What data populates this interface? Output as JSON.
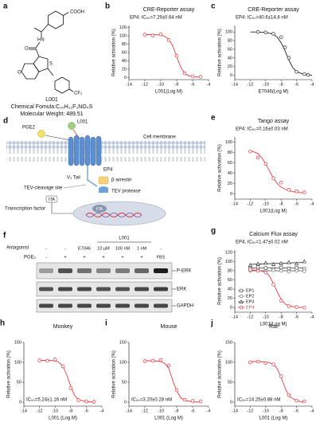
{
  "panel_a": {
    "label": "a",
    "atoms": [
      "COOH",
      "HN",
      "O",
      "S",
      "O",
      "CF₃"
    ],
    "name": "L001",
    "formula": "Chemical Fomula:C₂₅H₂₂F₃NO₄S",
    "weight": "Molecular Weight: 489.51"
  },
  "panel_d": {
    "label": "d",
    "pge2": "PGE2",
    "ligand": "L001",
    "membrane": "Cell membrane",
    "receptor": "EP4",
    "tail": "V₂ Tail",
    "cleavage": "TEV-cleavage site",
    "arrestin": "β-arrestin",
    "protease": "TEV protease",
    "tta": "tTA",
    "factor": "Transcription factor",
    "tta_nucleus": "tTA"
  },
  "panel_f": {
    "label": "f",
    "group": "L001",
    "antagonist": "Antagonist",
    "pge2": "PGE₂",
    "antagonist_lanes": [
      "-",
      "-",
      "E7046",
      "10 μM",
      "100 nM",
      "1 nM",
      "-"
    ],
    "pge2_lanes": [
      "-",
      "+",
      "+",
      "+",
      "+",
      "+",
      "FBS"
    ],
    "bands": [
      "P-ERK",
      "ERK",
      "GAPDH"
    ]
  },
  "chart_data": [
    {
      "type": "scatter",
      "label": "b",
      "title": "CRE-Reporter assay",
      "annotation": "EP4: IC₅₀=7.29±0.64 nM",
      "xlabel": "L001(Log M)",
      "ylabel": "Relative activation (%)",
      "xlim": [
        -14,
        -4
      ],
      "xticks": [
        -14,
        -12,
        -10,
        -8,
        -6,
        -4
      ],
      "ylim": [
        -5,
        125
      ],
      "yticks": [
        0,
        20,
        40,
        60,
        80,
        100,
        120
      ],
      "series": [
        {
          "color": "#e8383d",
          "marker": "circle",
          "x": [
            -12,
            -11,
            -10,
            -9,
            -8,
            -7,
            -6,
            -5
          ],
          "values": [
            103,
            101,
            104,
            90,
            52,
            10,
            3,
            2
          ],
          "fit": {
            "x": [
              -12,
              -11,
              -10,
              -9.5,
              -9,
              -8.5,
              -8,
              -7.5,
              -7,
              -6.5,
              -6,
              -5
            ],
            "values": [
              103,
              103,
              102,
              99,
              92,
              76,
              50,
              25,
              10,
              4,
              2,
              1
            ]
          }
        }
      ]
    },
    {
      "type": "scatter",
      "label": "c",
      "title": "CRE-Reporter assay",
      "annotation": "EP4: IC₅₀=40.6±14.8 nM",
      "xlabel": "E7046(Log M)",
      "ylabel": "Relative activation (%)",
      "xlim": [
        -14,
        -4
      ],
      "xticks": [
        -14,
        -12,
        -10,
        -8,
        -6,
        -4
      ],
      "ylim": [
        -10,
        115
      ],
      "yticks": [
        0,
        20,
        40,
        60,
        80,
        100
      ],
      "series": [
        {
          "color": "#222222",
          "marker": "circle",
          "x": [
            -11,
            -10,
            -9,
            -8,
            -7.5,
            -7,
            -6,
            -5,
            -4.5
          ],
          "values": [
            100,
            99,
            96,
            88,
            65,
            40,
            8,
            3,
            1
          ],
          "fit": {
            "x": [
              -12,
              -11,
              -10,
              -9,
              -8.5,
              -8,
              -7.5,
              -7,
              -6.5,
              -6,
              -5,
              -4
            ],
            "values": [
              100,
              100,
              99,
              95,
              88,
              75,
              57,
              35,
              18,
              8,
              2,
              0
            ]
          }
        }
      ]
    },
    {
      "type": "scatter",
      "label": "e",
      "title": "Tango assay",
      "annotation": "EP4: IC₅₀=0.16±0.03 nM",
      "xlabel": "L001(Log M)",
      "ylabel": "Relative activation (%)",
      "xlim": [
        -14,
        -4
      ],
      "xticks": [
        -14,
        -12,
        -10,
        -8,
        -6,
        -4
      ],
      "ylim": [
        -10,
        110
      ],
      "yticks": [
        0,
        20,
        40,
        60,
        80,
        100
      ],
      "series": [
        {
          "color": "#e8383d",
          "marker": "circle",
          "x": [
            -12,
            -11,
            -10,
            -9,
            -8,
            -7,
            -6,
            -5
          ],
          "values": [
            82,
            70,
            58,
            30,
            22,
            8,
            5,
            3
          ],
          "fit": {
            "x": [
              -12,
              -11,
              -10.5,
              -10,
              -9.5,
              -9,
              -8.5,
              -8,
              -7,
              -6,
              -5
            ],
            "values": [
              84,
              78,
              70,
              58,
              44,
              30,
              20,
              13,
              6,
              3,
              2
            ]
          }
        }
      ]
    },
    {
      "type": "scatter",
      "label": "g",
      "title": "Calcium Flux assay",
      "annotation": "EP4, IC₅₀=1.47±0.02 nM",
      "xlabel": "L001(Log M)",
      "ylabel": "Relative activation (%)",
      "xlim": [
        -14,
        -4
      ],
      "xticks": [
        -14,
        -12,
        -10,
        -8,
        -6,
        -4
      ],
      "ylim": [
        -10,
        125
      ],
      "yticks": [
        0,
        20,
        40,
        60,
        80,
        100,
        120
      ],
      "legend": "lower left",
      "series": [
        {
          "name": "EP1",
          "color": "#555555",
          "marker": "square",
          "x": [
            -12,
            -11,
            -10,
            -9,
            -8,
            -7,
            -6,
            -5
          ],
          "values": [
            85,
            88,
            86,
            84,
            87,
            85,
            86,
            84
          ],
          "fit": {
            "x": [
              -12,
              -5
            ],
            "values": [
              86,
              86
            ]
          }
        },
        {
          "name": "EP2",
          "color": "#777777",
          "marker": "circle",
          "x": [
            -12,
            -11,
            -10,
            -9,
            -8,
            -7,
            -6,
            -5
          ],
          "values": [
            80,
            82,
            79,
            81,
            80,
            78,
            80,
            79
          ],
          "fit": {
            "x": [
              -12,
              -5
            ],
            "values": [
              80,
              80
            ]
          }
        },
        {
          "name": "EP3",
          "color": "#333333",
          "marker": "triangle",
          "x": [
            -12,
            -11,
            -10,
            -9,
            -8,
            -7,
            -6,
            -5
          ],
          "values": [
            92,
            95,
            97,
            94,
            96,
            98,
            95,
            100
          ],
          "fit": {
            "x": [
              -12,
              -5
            ],
            "values": [
              94,
              98
            ]
          }
        },
        {
          "name": "EP4",
          "color": "#e8383d",
          "marker": "circle",
          "x": [
            -12,
            -11,
            -10,
            -9,
            -8,
            -7,
            -6,
            -5
          ],
          "values": [
            82,
            80,
            76,
            50,
            15,
            3,
            1,
            0
          ],
          "fit": {
            "x": [
              -12,
              -11,
              -10,
              -9.5,
              -9,
              -8.5,
              -8,
              -7.5,
              -7,
              -6,
              -5
            ],
            "values": [
              82,
              81,
              77,
              68,
              52,
              34,
              18,
              8,
              4,
              1,
              0
            ]
          }
        }
      ]
    },
    {
      "type": "scatter",
      "label": "h",
      "title": "Monkey",
      "annotation": "IC₅₀=5.24±1.16 nM",
      "xlabel": "L001 (Log M)",
      "ylabel": "Relative activation (%)",
      "xlim": [
        -14,
        -4
      ],
      "xticks": [
        -14,
        -12,
        -10,
        -8,
        -6,
        -4
      ],
      "ylim": [
        -10,
        150
      ],
      "yticks": [
        0,
        50,
        100,
        150
      ],
      "series": [
        {
          "color": "#e8383d",
          "marker": "circle",
          "x": [
            -12,
            -11,
            -10,
            -9,
            -8,
            -7,
            -6,
            -5
          ],
          "values": [
            105,
            104,
            107,
            90,
            35,
            5,
            2,
            1
          ],
          "fit": {
            "x": [
              -12,
              -11,
              -10,
              -9.5,
              -9,
              -8.5,
              -8,
              -7.5,
              -7,
              -6,
              -5
            ],
            "values": [
              105,
              105,
              104,
              100,
              90,
              68,
              40,
              17,
              6,
              1,
              0
            ]
          }
        }
      ]
    },
    {
      "type": "scatter",
      "label": "i",
      "title": "Mouse",
      "annotation": "IC₅₀=3.20±0.28 nM",
      "xlabel": "L001 (Log M)",
      "ylabel": "Relative activation (%)",
      "xlim": [
        -14,
        -4
      ],
      "xticks": [
        -14,
        -12,
        -10,
        -8,
        -6,
        -4
      ],
      "ylim": [
        -10,
        150
      ],
      "yticks": [
        0,
        50,
        100,
        150
      ],
      "series": [
        {
          "color": "#e8383d",
          "marker": "circle",
          "x": [
            -12,
            -11,
            -10,
            -9,
            -8,
            -7,
            -6,
            -5
          ],
          "values": [
            103,
            104,
            106,
            92,
            30,
            6,
            3,
            2
          ],
          "fit": {
            "x": [
              -12,
              -11,
              -10,
              -9.5,
              -9,
              -8.5,
              -8,
              -7.5,
              -7,
              -6,
              -5
            ],
            "values": [
              104,
              104,
              102,
              97,
              85,
              55,
              28,
              11,
              4,
              1,
              0
            ]
          }
        }
      ]
    },
    {
      "type": "scatter",
      "label": "j",
      "title": "Rat",
      "annotation": "IC₅₀=14.25±0.88 nM",
      "xlabel": "L001 (Log M)",
      "ylabel": "Relative activation (%)",
      "xlim": [
        -14,
        -4
      ],
      "xticks": [
        -14,
        -12,
        -10,
        -8,
        -6,
        -4
      ],
      "ylim": [
        -10,
        150
      ],
      "yticks": [
        0,
        50,
        100,
        150
      ],
      "series": [
        {
          "color": "#e8383d",
          "marker": "circle",
          "x": [
            -12,
            -11,
            -10,
            -9,
            -8,
            -7,
            -6,
            -5
          ],
          "values": [
            100,
            102,
            98,
            95,
            65,
            18,
            4,
            2
          ],
          "fit": {
            "x": [
              -12,
              -11,
              -10,
              -9.5,
              -9,
              -8.5,
              -8,
              -7.5,
              -7,
              -6,
              -5
            ],
            "values": [
              102,
              102,
              101,
              99,
              95,
              84,
              62,
              36,
              15,
              3,
              0
            ]
          }
        }
      ]
    }
  ]
}
